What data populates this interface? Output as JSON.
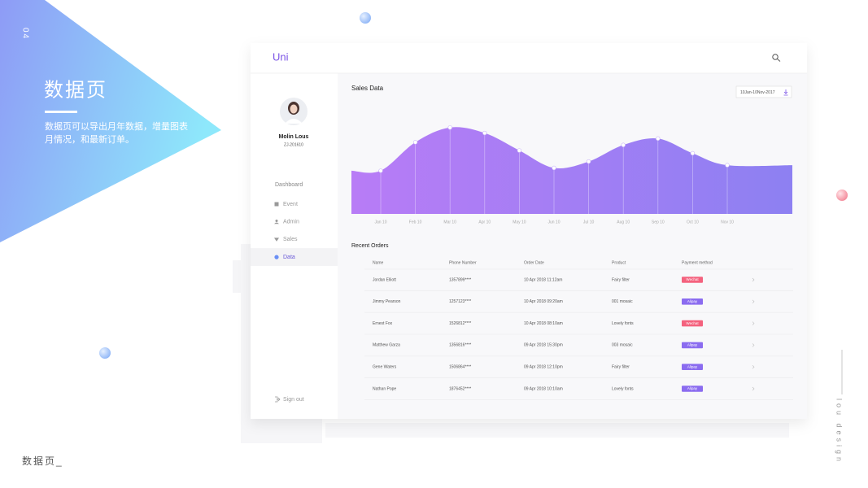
{
  "slide": {
    "number": "04",
    "title": "数据页",
    "description": [
      "数据页可以导出月年数据，增量图表",
      "月情况，和最新订单。"
    ],
    "footer": "数据页_",
    "side_text": "lou design"
  },
  "app": {
    "brand": "Uni",
    "user": {
      "name": "Molin Lous",
      "id": "ZJ-201610"
    },
    "section": "Dashboard",
    "nav": [
      "Event",
      "Admin",
      "Sales",
      "Data"
    ],
    "active_nav": 3,
    "sign_out": "Sign out"
  },
  "chart_data": {
    "type": "area",
    "title": "Sales Data",
    "date_range": "10Jan-10Nov-2017",
    "categories": [
      "Jan 10",
      "Feb 10",
      "Mar 10",
      "Apr 10",
      "May 10",
      "Jun 10",
      "Jul 10",
      "Aug 10",
      "Sep 10",
      "Oct 10",
      "Nov 10"
    ],
    "values": [
      47,
      78,
      94,
      88,
      69,
      50,
      57,
      75,
      82,
      66,
      53
    ],
    "ylim": [
      0,
      100
    ],
    "color": [
      "#b87cf6",
      "#8d80f2"
    ]
  },
  "orders": {
    "title": "Recent Orders",
    "columns": [
      "Name",
      "Phone Number",
      "Order Date",
      "Product",
      "Payment method"
    ],
    "rows": [
      [
        "Jordan Elliott",
        "1357899****",
        "10 Apr 2018 11:12am",
        "Fairy filter",
        "Wechat"
      ],
      [
        "Jimmy Pearson",
        "1257123****",
        "10 Apr 2018 09:20am",
        "001 mosaic",
        "Alipay"
      ],
      [
        "Ernest Fox",
        "1526812****",
        "10 Apr 2018 08:10am",
        "Lovely fonts",
        "Wechat"
      ],
      [
        "Matthew Garza",
        "1356816****",
        "09 Apr 2018 15:30pm",
        "003 mosaic",
        "Alipay"
      ],
      [
        "Gene Waters",
        "1506864****",
        "09 Apr 2018 12:10pm",
        "Fairy filter",
        "Alipay"
      ],
      [
        "Nathan Pope",
        "1876452****",
        "09 Apr 2018 10:10am",
        "Lovely fonts",
        "Alipay"
      ]
    ],
    "payment_colors": {
      "Wechat": "#f4627e",
      "Alipay": "#8b6cf0"
    }
  }
}
